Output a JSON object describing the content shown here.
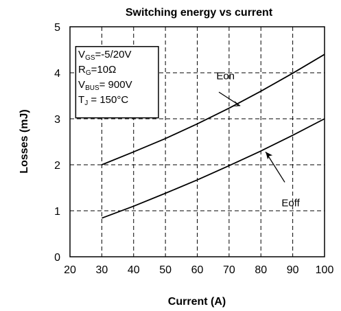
{
  "chart_data": {
    "type": "line",
    "title": "Switching energy vs current",
    "xlabel": "Current (A)",
    "ylabel": "Losses (mJ)",
    "xlim": [
      20,
      100
    ],
    "ylim": [
      0,
      5
    ],
    "xticks": [
      20,
      30,
      40,
      50,
      60,
      70,
      80,
      90,
      100
    ],
    "yticks": [
      0,
      1,
      2,
      3,
      4,
      5
    ],
    "grid": true,
    "series": [
      {
        "name": "Eon",
        "x": [
          30,
          40,
          50,
          60,
          70,
          80,
          90,
          100
        ],
        "y": [
          2.0,
          2.28,
          2.57,
          2.89,
          3.23,
          3.6,
          3.99,
          4.4
        ]
      },
      {
        "name": "Eoff",
        "x": [
          30,
          40,
          50,
          60,
          70,
          80,
          90,
          100
        ],
        "y": [
          0.84,
          1.1,
          1.38,
          1.67,
          1.98,
          2.3,
          2.64,
          3.0
        ]
      }
    ],
    "annotations": {
      "eon_label": "Eon",
      "eoff_label": "Eoff",
      "conditions": [
        {
          "main": "V",
          "sub": "GS",
          "rest": "=-5/20V"
        },
        {
          "main": "R",
          "sub": "G",
          "rest": "=10Ω"
        },
        {
          "main": "V",
          "sub": "BUS",
          "rest": "= 900V"
        },
        {
          "main": "T",
          "sub": "J",
          "rest": " = 150°C"
        }
      ]
    }
  }
}
